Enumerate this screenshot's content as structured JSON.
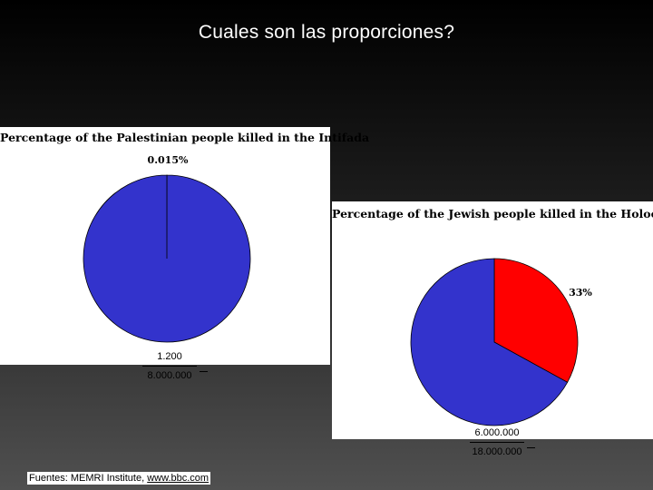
{
  "slide": {
    "title": "Cuales son las proporciones?",
    "source_prefix": "Fuentes: MEMRI Institute, ",
    "source_link": "www.bbc.com"
  },
  "fractions": {
    "left": {
      "numerator": "1.200",
      "denominator": "8.000.000"
    },
    "right": {
      "numerator": "6.000.000",
      "denominator": "18.000.000"
    }
  },
  "colors": {
    "blue": "#3333cc",
    "red": "#ff0000"
  },
  "chart_data": [
    {
      "type": "pie",
      "title": "Percentage of the Palestinian people killed in the Intifada",
      "slices": [
        {
          "label": "0.015%",
          "value": 0.015,
          "color": "#3333cc"
        },
        {
          "label": "",
          "value": 99.985,
          "color": "#3333cc"
        }
      ]
    },
    {
      "type": "pie",
      "title": "Percentage of the Jewish people killed in the Holocaust",
      "slices": [
        {
          "label": "33%",
          "value": 33,
          "color": "#ff0000"
        },
        {
          "label": "",
          "value": 67,
          "color": "#3333cc"
        }
      ]
    }
  ]
}
